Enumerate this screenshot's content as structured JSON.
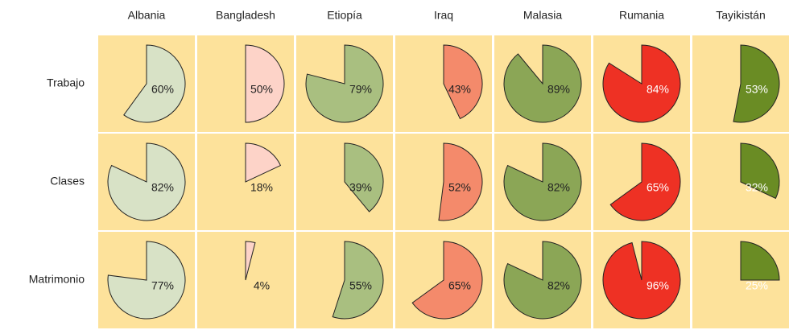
{
  "chart_data": {
    "type": "pie",
    "categories": [
      "Albania",
      "Bangladesh",
      "Etiopía",
      "Iraq",
      "Malasia",
      "Rumania",
      "Tayikistán"
    ],
    "colors": [
      "#d8e2c6",
      "#fdd3c8",
      "#a9bf80",
      "#f48a6b",
      "#8ba656",
      "#ee3124",
      "#6a8c24"
    ],
    "series": [
      {
        "name": "Trabajo",
        "values": [
          60,
          50,
          79,
          43,
          89,
          84,
          53
        ],
        "value_labels": [
          "60%",
          "50%",
          "79%",
          "43%",
          "89%",
          "84%",
          "53%"
        ]
      },
      {
        "name": "Clases",
        "values": [
          82,
          18,
          39,
          52,
          82,
          65,
          32
        ],
        "value_labels": [
          "82%",
          "18%",
          "39%",
          "52%",
          "82%",
          "65%",
          "32%"
        ]
      },
      {
        "name": "Matrimonio",
        "values": [
          77,
          4,
          55,
          65,
          82,
          96,
          25
        ],
        "value_labels": [
          "77%",
          "4%",
          "55%",
          "65%",
          "82%",
          "96%",
          "25%"
        ]
      }
    ]
  }
}
